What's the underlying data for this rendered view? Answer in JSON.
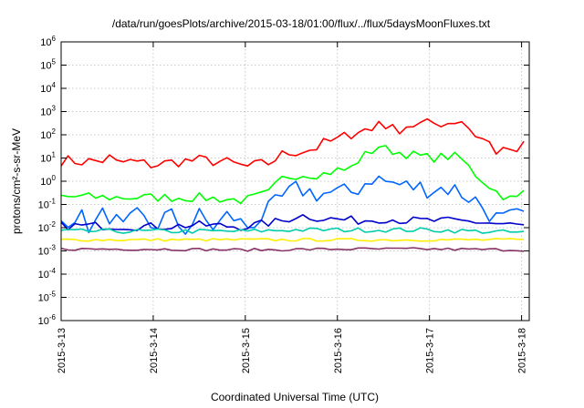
{
  "chart_data": {
    "type": "line",
    "title": "/data/run/goesPlots/archive/2015-03-18/01:00/flux/../flux/5daysMoonFluxes.txt",
    "xlabel": "Coordinated Universal Time (UTC)",
    "ylabel": "protons/cm²-s-sr-MeV",
    "y_scale": "log",
    "ylim": [
      1e-06,
      1000000.0
    ],
    "y_ticks": [
      {
        "value": 1e-06,
        "base": "10",
        "exp": "-6"
      },
      {
        "value": 1e-05,
        "base": "10",
        "exp": "-5"
      },
      {
        "value": 0.0001,
        "base": "10",
        "exp": "-4"
      },
      {
        "value": 0.001,
        "base": "10",
        "exp": "-3"
      },
      {
        "value": 0.01,
        "base": "10",
        "exp": "-2"
      },
      {
        "value": 0.1,
        "base": "10",
        "exp": "-1"
      },
      {
        "value": 1,
        "base": "10",
        "exp": "0"
      },
      {
        "value": 10,
        "base": "10",
        "exp": "1"
      },
      {
        "value": 100,
        "base": "10",
        "exp": "2"
      },
      {
        "value": 1000,
        "base": "10",
        "exp": "3"
      },
      {
        "value": 10000,
        "base": "10",
        "exp": "4"
      },
      {
        "value": 100000,
        "base": "10",
        "exp": "5"
      },
      {
        "value": 1000000,
        "base": "10",
        "exp": "6"
      }
    ],
    "xlim": [
      "2015-03-13",
      "2015-03-18 02:00"
    ],
    "x_ticks": [
      "2015-3-13",
      "2015-3-14",
      "2015-3-15",
      "2015-3-16",
      "2015-3-17",
      "2015-3-18"
    ],
    "grid": true,
    "series": [
      {
        "color": "#ff0000",
        "points": [
          [
            "2015-03-13 00:00",
            8
          ],
          [
            "2015-03-13 06:00",
            7
          ],
          [
            "2015-03-13 12:00",
            8
          ],
          [
            "2015-03-13 13:00",
            12
          ],
          [
            "2015-03-13 14:00",
            6
          ],
          [
            "2015-03-13 18:00",
            7
          ],
          [
            "2015-03-14 00:00",
            5
          ],
          [
            "2015-03-14 06:00",
            7
          ],
          [
            "2015-03-14 12:00",
            8
          ],
          [
            "2015-03-14 18:00",
            7
          ],
          [
            "2015-03-14 22:00",
            5
          ],
          [
            "2015-03-15 00:00",
            4
          ],
          [
            "2015-03-15 06:00",
            6
          ],
          [
            "2015-03-15 10:00",
            15
          ],
          [
            "2015-03-15 14:00",
            20
          ],
          [
            "2015-03-15 18:00",
            25
          ],
          [
            "2015-03-15 20:00",
            40
          ],
          [
            "2015-03-16 00:00",
            60
          ],
          [
            "2015-03-16 03:00",
            100
          ],
          [
            "2015-03-16 06:00",
            180
          ],
          [
            "2015-03-16 09:00",
            150
          ],
          [
            "2015-03-16 10:00",
            500
          ],
          [
            "2015-03-16 12:00",
            300
          ],
          [
            "2015-03-16 15:00",
            150
          ],
          [
            "2015-03-16 18:00",
            250
          ],
          [
            "2015-03-17 00:00",
            300
          ],
          [
            "2015-03-17 06:00",
            350
          ],
          [
            "2015-03-17 08:00",
            500
          ],
          [
            "2015-03-17 12:00",
            100
          ],
          [
            "2015-03-17 16:00",
            40
          ],
          [
            "2015-03-17 18:00",
            15
          ],
          [
            "2015-03-17 20:00",
            20
          ],
          [
            "2015-03-17 22:00",
            30
          ],
          [
            "2015-03-17 23:00",
            10
          ],
          [
            "2015-03-18 00:00",
            150
          ],
          [
            "2015-03-18 01:00",
            20
          ],
          [
            "2015-03-18 02:00",
            18
          ]
        ]
      },
      {
        "color": "#00ff00",
        "points": [
          [
            "2015-03-13 00:00",
            0.22
          ],
          [
            "2015-03-13 12:00",
            0.2
          ],
          [
            "2015-03-14 00:00",
            0.2
          ],
          [
            "2015-03-14 12:00",
            0.2
          ],
          [
            "2015-03-15 00:00",
            0.15
          ],
          [
            "2015-03-15 06:00",
            0.3
          ],
          [
            "2015-03-15 10:00",
            1.5
          ],
          [
            "2015-03-15 14:00",
            2
          ],
          [
            "2015-03-15 20:00",
            2
          ],
          [
            "2015-03-16 00:00",
            3
          ],
          [
            "2015-03-16 03:00",
            3
          ],
          [
            "2015-03-16 06:00",
            10
          ],
          [
            "2015-03-16 09:00",
            20
          ],
          [
            "2015-03-16 10:00",
            40
          ],
          [
            "2015-03-16 12:00",
            25
          ],
          [
            "2015-03-16 18:00",
            15
          ],
          [
            "2015-03-17 00:00",
            10
          ],
          [
            "2015-03-17 06:00",
            12
          ],
          [
            "2015-03-17 08:00",
            10
          ],
          [
            "2015-03-17 12:00",
            2
          ],
          [
            "2015-03-17 18:00",
            0.3
          ],
          [
            "2015-03-17 22:00",
            0.15
          ],
          [
            "2015-03-18 00:00",
            0.25
          ],
          [
            "2015-03-18 01:00",
            0.4
          ],
          [
            "2015-03-18 02:00",
            0.4
          ]
        ]
      },
      {
        "color": "#0066ff",
        "points": [
          [
            "2015-03-13 00:00",
            0.02
          ],
          [
            "2015-03-13 04:00",
            0.04
          ],
          [
            "2015-03-13 08:00",
            0.01
          ],
          [
            "2015-03-13 12:00",
            0.05
          ],
          [
            "2015-03-13 16:00",
            0.008
          ],
          [
            "2015-03-13 20:00",
            0.03
          ],
          [
            "2015-03-14 00:00",
            0.01
          ],
          [
            "2015-03-14 04:00",
            0.04
          ],
          [
            "2015-03-14 08:00",
            0.008
          ],
          [
            "2015-03-14 12:00",
            0.03
          ],
          [
            "2015-03-14 16:00",
            0.01
          ],
          [
            "2015-03-14 20:00",
            0.04
          ],
          [
            "2015-03-15 00:00",
            0.01
          ],
          [
            "2015-03-15 06:00",
            0.05
          ],
          [
            "2015-03-15 10:00",
            0.2
          ],
          [
            "2015-03-15 14:00",
            0.5
          ],
          [
            "2015-03-15 18:00",
            0.3
          ],
          [
            "2015-03-16 00:00",
            0.3
          ],
          [
            "2015-03-16 03:00",
            0.3
          ],
          [
            "2015-03-16 06:00",
            0.6
          ],
          [
            "2015-03-16 09:00",
            1.5
          ],
          [
            "2015-03-16 12:00",
            1
          ],
          [
            "2015-03-16 18:00",
            0.6
          ],
          [
            "2015-03-17 00:00",
            0.5
          ],
          [
            "2015-03-17 06:00",
            0.5
          ],
          [
            "2015-03-17 12:00",
            0.15
          ],
          [
            "2015-03-17 18:00",
            0.02
          ],
          [
            "2015-03-18 00:00",
            0.03
          ],
          [
            "2015-03-18 02:00",
            0.05
          ]
        ]
      },
      {
        "color": "#0000cc",
        "points": [
          [
            "2015-03-13 00:00",
            0.012
          ],
          [
            "2015-03-13 12:00",
            0.012
          ],
          [
            "2015-03-14 00:00",
            0.011
          ],
          [
            "2015-03-14 12:00",
            0.013
          ],
          [
            "2015-03-15 00:00",
            0.011
          ],
          [
            "2015-03-15 10:00",
            0.02
          ],
          [
            "2015-03-15 14:00",
            0.035
          ],
          [
            "2015-03-15 20:00",
            0.025
          ],
          [
            "2015-03-16 06:00",
            0.02
          ],
          [
            "2015-03-16 12:00",
            0.025
          ],
          [
            "2015-03-16 18:00",
            0.02
          ],
          [
            "2015-03-17 00:00",
            0.02
          ],
          [
            "2015-03-17 12:00",
            0.018
          ],
          [
            "2015-03-18 00:00",
            0.012
          ],
          [
            "2015-03-18 02:00",
            0.012
          ]
        ]
      },
      {
        "color": "#00ccaa",
        "points": [
          [
            "2015-03-13 00:00",
            0.007
          ],
          [
            "2015-03-14 00:00",
            0.007
          ],
          [
            "2015-03-15 00:00",
            0.007
          ],
          [
            "2015-03-15 12:00",
            0.008
          ],
          [
            "2015-03-16 00:00",
            0.008
          ],
          [
            "2015-03-17 00:00",
            0.008
          ],
          [
            "2015-03-17 12:00",
            0.007
          ],
          [
            "2015-03-18 02:00",
            0.006
          ]
        ]
      },
      {
        "color": "#ffee00",
        "points": [
          [
            "2015-03-13 00:00",
            0.003
          ],
          [
            "2015-03-14 00:00",
            0.003
          ],
          [
            "2015-03-15 00:00",
            0.003
          ],
          [
            "2015-03-16 00:00",
            0.003
          ],
          [
            "2015-03-17 00:00",
            0.003
          ],
          [
            "2015-03-18 02:00",
            0.003
          ]
        ]
      },
      {
        "color": "#883366",
        "points": [
          [
            "2015-03-13 00:00",
            0.0012
          ],
          [
            "2015-03-14 00:00",
            0.0012
          ],
          [
            "2015-03-15 00:00",
            0.0011
          ],
          [
            "2015-03-16 00:00",
            0.0012
          ],
          [
            "2015-03-17 00:00",
            0.0012
          ],
          [
            "2015-03-18 02:00",
            0.0011
          ]
        ]
      }
    ]
  }
}
